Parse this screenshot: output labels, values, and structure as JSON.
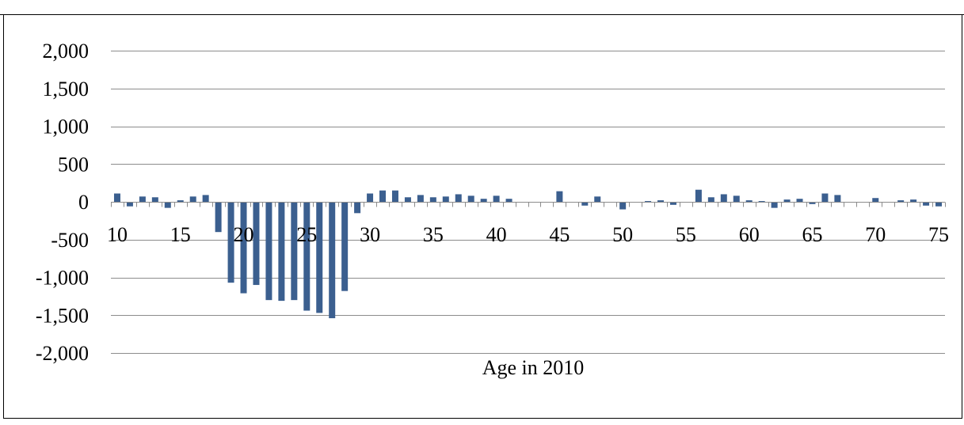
{
  "chart_data": {
    "type": "bar",
    "xlabel": "Age in 2010",
    "ylabel": "",
    "ylim": [
      -2000,
      2000
    ],
    "yticks": [
      2000,
      1500,
      1000,
      500,
      0,
      -500,
      -1000,
      -1500,
      -2000
    ],
    "ytick_labels": [
      "2,000",
      "1,500",
      "1,000",
      "500",
      "0",
      "-500",
      "-1,000",
      "-1,500",
      "-2,000"
    ],
    "xtick_labels": [
      "10",
      "15",
      "20",
      "25",
      "30",
      "35",
      "40",
      "45",
      "50",
      "55",
      "60",
      "65",
      "70",
      "75"
    ],
    "grid": "horizontal",
    "legend": "none",
    "bar_color": "#3B5F8F",
    "categories": [
      10,
      11,
      12,
      13,
      14,
      15,
      16,
      17,
      18,
      19,
      20,
      21,
      22,
      23,
      24,
      25,
      26,
      27,
      28,
      29,
      30,
      31,
      32,
      33,
      34,
      35,
      36,
      37,
      38,
      39,
      40,
      41,
      42,
      43,
      44,
      45,
      46,
      47,
      48,
      49,
      50,
      51,
      52,
      53,
      54,
      55,
      56,
      57,
      58,
      59,
      60,
      61,
      62,
      63,
      64,
      65,
      66,
      67,
      68,
      69,
      70,
      71,
      72,
      73,
      74,
      75
    ],
    "values": [
      110,
      -60,
      70,
      60,
      -80,
      20,
      70,
      90,
      -400,
      -1070,
      -1210,
      -1100,
      -1300,
      -1310,
      -1300,
      -1440,
      -1470,
      -1540,
      -1180,
      -150,
      110,
      150,
      150,
      60,
      90,
      60,
      70,
      100,
      80,
      40,
      80,
      40,
      0,
      0,
      0,
      140,
      0,
      -50,
      70,
      0,
      -100,
      0,
      10,
      20,
      -40,
      0,
      160,
      60,
      100,
      80,
      20,
      10,
      -80,
      30,
      40,
      -30,
      110,
      90,
      0,
      0,
      50,
      0,
      20,
      30,
      -50,
      -60
    ]
  }
}
